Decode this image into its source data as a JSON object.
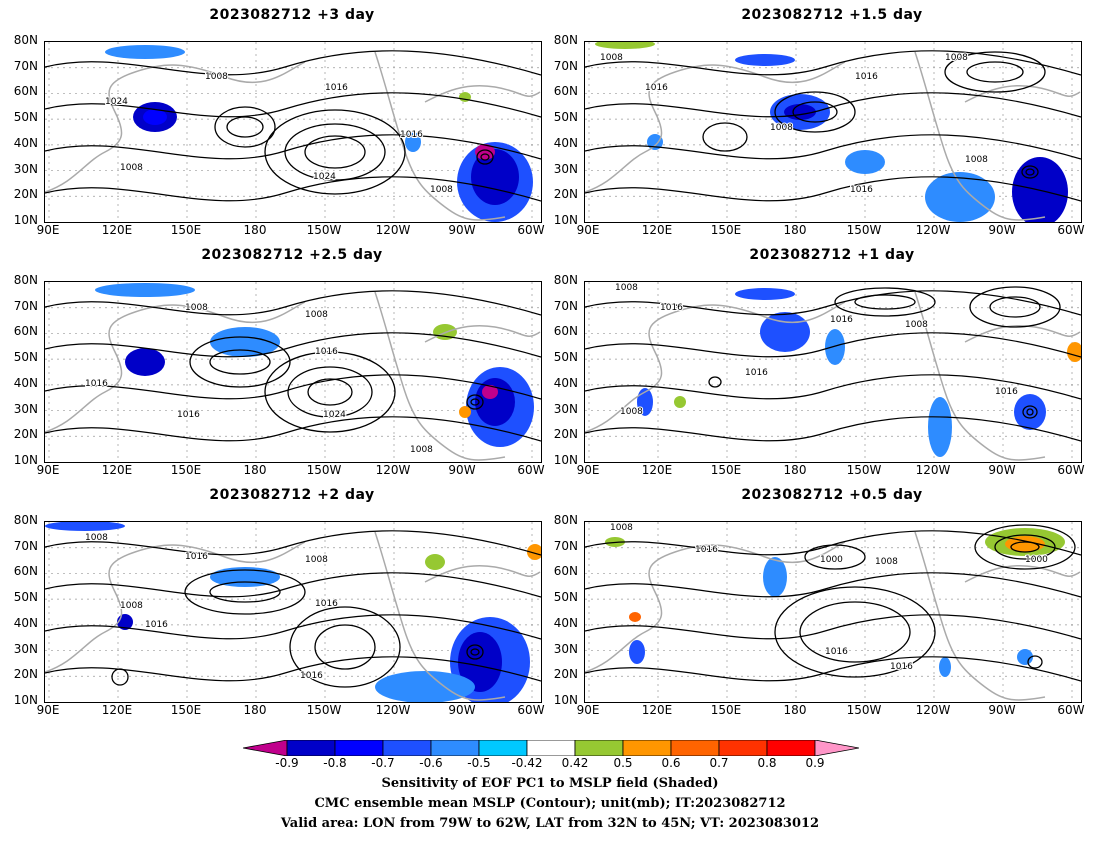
{
  "panels": [
    {
      "title": "2023082712  +3 day"
    },
    {
      "title": "2023082712  +1.5 day"
    },
    {
      "title": "2023082712  +2.5 day"
    },
    {
      "title": "2023082712  +1 day"
    },
    {
      "title": "2023082712  +2 day"
    },
    {
      "title": "2023082712  +0.5 day"
    }
  ],
  "axes": {
    "lat_labels": [
      "80N",
      "70N",
      "60N",
      "50N",
      "40N",
      "30N",
      "20N",
      "10N"
    ],
    "lon_labels": [
      "90E",
      "120E",
      "150E",
      "180",
      "150W",
      "120W",
      "90W",
      "60W"
    ]
  },
  "colorbar": {
    "tick_labels": [
      "-0.9",
      "-0.8",
      "-0.7",
      "-0.6",
      "-0.5",
      "-0.42",
      "0.42",
      "0.5",
      "0.6",
      "0.7",
      "0.8",
      "0.9"
    ],
    "colors": [
      "#c0008c",
      "#0000c8",
      "#0000ff",
      "#1e50ff",
      "#2e8cff",
      "#00c8ff",
      "#ffffff",
      "#96c832",
      "#ff9600",
      "#ff6400",
      "#ff3200",
      "#ff0000",
      "#ff96c8"
    ]
  },
  "caption": {
    "line1": "Sensitivity of EOF PC1 to MSLP field (Shaded)",
    "line2": "CMC ensemble mean MSLP (Contour); unit(mb); IT:2023082712",
    "line3": "Valid area: LON from 79W to 62W, LAT from 32N to 45N; VT: 2023083012"
  },
  "contour_labels": [
    "1000",
    "1008",
    "1016",
    "1024"
  ]
}
